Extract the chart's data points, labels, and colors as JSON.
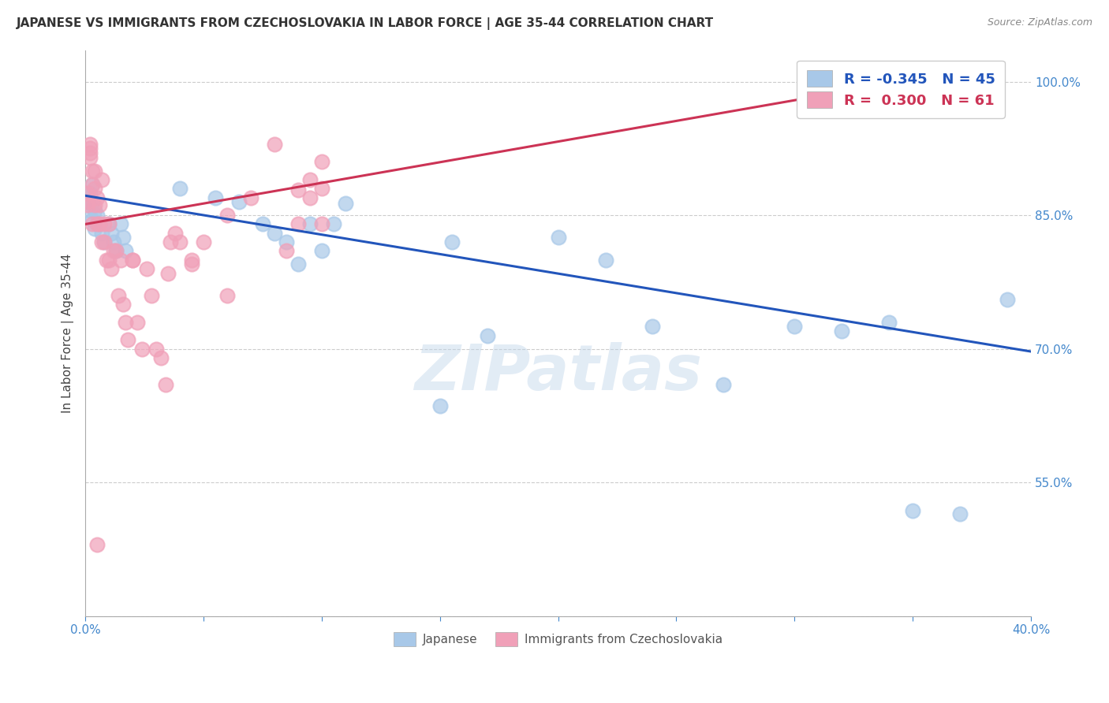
{
  "title": "JAPANESE VS IMMIGRANTS FROM CZECHOSLOVAKIA IN LABOR FORCE | AGE 35-44 CORRELATION CHART",
  "source": "Source: ZipAtlas.com",
  "ylabel": "In Labor Force | Age 35-44",
  "xlim": [
    0.0,
    0.4
  ],
  "ylim": [
    0.4,
    1.035
  ],
  "background_color": "#ffffff",
  "blue_color": "#A8C8E8",
  "pink_color": "#F0A0B8",
  "blue_line_color": "#2255BB",
  "pink_line_color": "#CC3355",
  "tick_color": "#4488CC",
  "grid_color": "#CCCCCC",
  "legend_R_blue": "-0.345",
  "legend_N_blue": "45",
  "legend_R_pink": "0.300",
  "legend_N_pink": "61",
  "legend_label_blue": "Japanese",
  "legend_label_pink": "Immigrants from Czechoslovakia",
  "watermark": "ZIPatlas",
  "blue_line_x0": 0.0,
  "blue_line_y0": 0.872,
  "blue_line_x1": 0.4,
  "blue_line_y1": 0.697,
  "pink_line_x0": 0.0,
  "pink_line_y0": 0.84,
  "pink_line_x1": 0.345,
  "pink_line_y1": 1.0,
  "blue_x": [
    0.001,
    0.001,
    0.002,
    0.002,
    0.003,
    0.003,
    0.003,
    0.004,
    0.004,
    0.005,
    0.005,
    0.006,
    0.007,
    0.008,
    0.01,
    0.011,
    0.012,
    0.013,
    0.015,
    0.016,
    0.017,
    0.04,
    0.055,
    0.065,
    0.075,
    0.08,
    0.085,
    0.09,
    0.095,
    0.1,
    0.105,
    0.11,
    0.15,
    0.155,
    0.17,
    0.2,
    0.22,
    0.24,
    0.27,
    0.3,
    0.32,
    0.34,
    0.35,
    0.37,
    0.39
  ],
  "blue_y": [
    0.865,
    0.87,
    0.875,
    0.855,
    0.845,
    0.865,
    0.885,
    0.835,
    0.855,
    0.84,
    0.85,
    0.84,
    0.83,
    0.82,
    0.84,
    0.83,
    0.82,
    0.81,
    0.84,
    0.825,
    0.81,
    0.88,
    0.87,
    0.865,
    0.84,
    0.83,
    0.82,
    0.795,
    0.84,
    0.81,
    0.84,
    0.863,
    0.636,
    0.82,
    0.715,
    0.825,
    0.8,
    0.725,
    0.66,
    0.725,
    0.72,
    0.73,
    0.518,
    0.515,
    0.755
  ],
  "pink_x": [
    0.001,
    0.001,
    0.001,
    0.002,
    0.002,
    0.002,
    0.002,
    0.003,
    0.003,
    0.003,
    0.004,
    0.004,
    0.004,
    0.005,
    0.005,
    0.006,
    0.006,
    0.007,
    0.007,
    0.008,
    0.008,
    0.009,
    0.01,
    0.01,
    0.011,
    0.012,
    0.013,
    0.014,
    0.015,
    0.016,
    0.017,
    0.018,
    0.02,
    0.022,
    0.024,
    0.026,
    0.028,
    0.03,
    0.032,
    0.034,
    0.036,
    0.038,
    0.04,
    0.045,
    0.05,
    0.06,
    0.07,
    0.08,
    0.09,
    0.1,
    0.1,
    0.095,
    0.09,
    0.1,
    0.085,
    0.095,
    0.06,
    0.045,
    0.035,
    0.02,
    0.005
  ],
  "pink_y": [
    0.862,
    0.865,
    0.875,
    0.92,
    0.93,
    0.925,
    0.915,
    0.9,
    0.885,
    0.84,
    0.9,
    0.88,
    0.862,
    0.87,
    0.84,
    0.862,
    0.84,
    0.89,
    0.82,
    0.84,
    0.82,
    0.8,
    0.84,
    0.8,
    0.79,
    0.81,
    0.81,
    0.76,
    0.8,
    0.75,
    0.73,
    0.71,
    0.8,
    0.73,
    0.7,
    0.79,
    0.76,
    0.7,
    0.69,
    0.66,
    0.82,
    0.83,
    0.82,
    0.795,
    0.82,
    0.85,
    0.87,
    0.93,
    0.878,
    0.88,
    0.91,
    0.87,
    0.84,
    0.84,
    0.81,
    0.89,
    0.76,
    0.8,
    0.785,
    0.8,
    0.48
  ]
}
